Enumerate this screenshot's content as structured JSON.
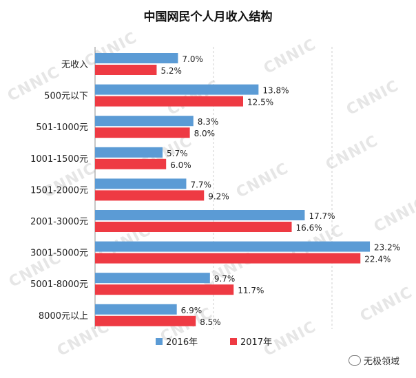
{
  "chart_data": {
    "type": "bar",
    "orientation": "horizontal",
    "title": "中国网民个人月收入结构",
    "categories": [
      "无收入",
      "500元以下",
      "501-1000元",
      "1001-1500元",
      "1501-2000元",
      "2001-3000元",
      "3001-5000元",
      "5001-8000元",
      "8000元以上"
    ],
    "series": [
      {
        "name": "2016年",
        "color": "#5b9bd5",
        "values": [
          7.0,
          13.8,
          8.3,
          5.7,
          7.7,
          17.7,
          23.2,
          9.7,
          6.9
        ],
        "labels": [
          "7.0%",
          "13.8%",
          "8.3%",
          "5.7%",
          "7.7%",
          "17.7%",
          "23.2%",
          "9.7%",
          "6.9%"
        ]
      },
      {
        "name": "2017年",
        "color": "#ee3a43",
        "values": [
          5.2,
          12.5,
          8.0,
          6.0,
          9.2,
          16.6,
          22.4,
          11.7,
          8.5
        ],
        "labels": [
          "5.2%",
          "12.5%",
          "8.0%",
          "6.0%",
          "9.2%",
          "16.6%",
          "22.4%",
          "11.7%",
          "8.5%"
        ]
      }
    ],
    "xlim": [
      0,
      27
    ],
    "grid": true,
    "legend_position": "bottom"
  },
  "watermark_text": "CNNIC",
  "footer": {
    "source_label": "无极领域",
    "icon": "wechat-icon"
  }
}
